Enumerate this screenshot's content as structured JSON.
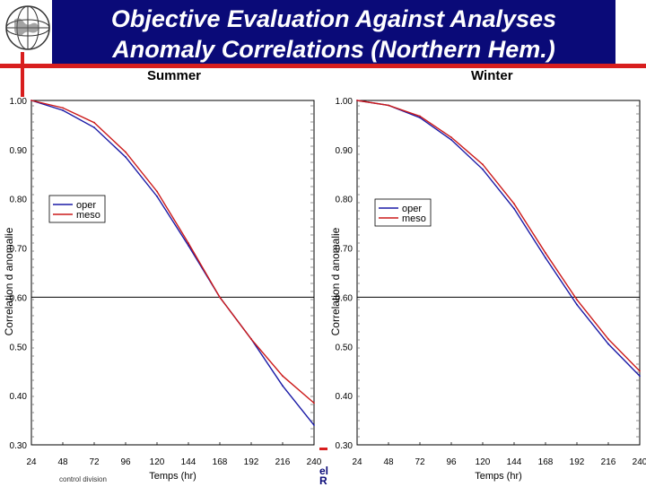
{
  "header": {
    "title_line1": "Objective Evaluation Against Analyses",
    "title_line2": "Anomaly Correlations (Northern Hem.)",
    "logo_icon": "globe-icon",
    "accent_color": "#d81e1e",
    "title_bg_color": "#0a0a78"
  },
  "footer": {
    "left_text": "control division",
    "right_line1": "el",
    "right_line2": "R"
  },
  "chart_data": [
    {
      "type": "line",
      "title": "Summer",
      "xlabel": "Temps (hr)",
      "ylabel": "Correlation d anomalie",
      "x": [
        24,
        48,
        72,
        96,
        120,
        144,
        168,
        192,
        216,
        240
      ],
      "x_ticks": [
        "24",
        "48",
        "72",
        "96",
        "120",
        "144",
        "168",
        "192",
        "216",
        "240"
      ],
      "xlim": [
        24,
        240
      ],
      "ylim": [
        0.3,
        1.0
      ],
      "y_ticks": [
        "1.00",
        "0.90",
        "0.80",
        "0.70",
        "0.60",
        "0.50",
        "0.40",
        "0.30"
      ],
      "reference_line": 0.6,
      "legend_position": "upper-left",
      "series": [
        {
          "name": "oper",
          "color": "#1a1aa6",
          "values": [
            1.0,
            0.98,
            0.945,
            0.885,
            0.805,
            0.705,
            0.6,
            0.515,
            0.42,
            0.34
          ]
        },
        {
          "name": "meso",
          "color": "#cc1a1a",
          "values": [
            1.0,
            0.985,
            0.955,
            0.895,
            0.815,
            0.71,
            0.6,
            0.515,
            0.44,
            0.385
          ]
        }
      ]
    },
    {
      "type": "line",
      "title": "Winter",
      "xlabel": "Temps (hr)",
      "ylabel": "Correlation d anomalie",
      "x": [
        24,
        48,
        72,
        96,
        120,
        144,
        168,
        192,
        216,
        240
      ],
      "x_ticks": [
        "24",
        "48",
        "72",
        "96",
        "120",
        "144",
        "168",
        "192",
        "216",
        "240"
      ],
      "xlim": [
        24,
        240
      ],
      "ylim": [
        0.3,
        1.0
      ],
      "y_ticks": [
        "1.00",
        "0.90",
        "0.80",
        "0.70",
        "0.60",
        "0.50",
        "0.40",
        "0.30"
      ],
      "reference_line": 0.6,
      "legend_position": "upper-left",
      "series": [
        {
          "name": "oper",
          "color": "#1a1aa6",
          "values": [
            1.0,
            0.99,
            0.965,
            0.92,
            0.86,
            0.78,
            0.68,
            0.585,
            0.505,
            0.44
          ]
        },
        {
          "name": "meso",
          "color": "#cc1a1a",
          "values": [
            1.0,
            0.99,
            0.968,
            0.925,
            0.87,
            0.79,
            0.69,
            0.595,
            0.515,
            0.45
          ]
        }
      ]
    }
  ]
}
